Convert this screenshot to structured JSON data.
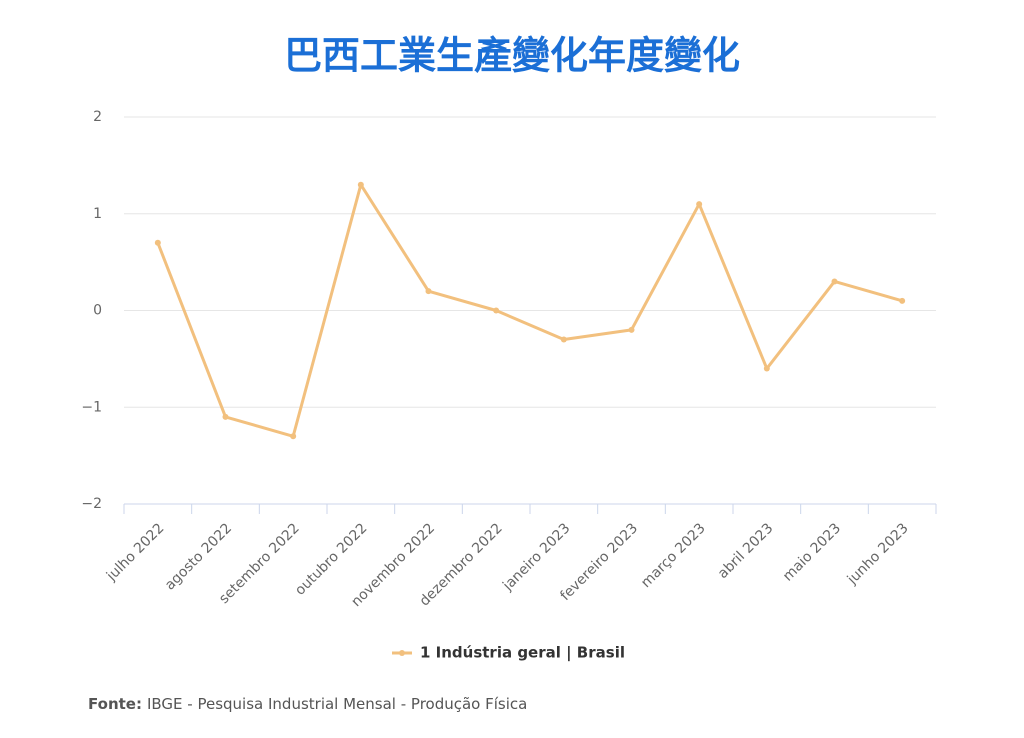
{
  "chart_data": {
    "type": "line",
    "title": "巴西工業生產變化年度變化",
    "categories": [
      "julho 2022",
      "agosto 2022",
      "setembro 2022",
      "outubro 2022",
      "novembro 2022",
      "dezembro 2022",
      "janeiro 2023",
      "fevereiro 2023",
      "março 2023",
      "abril 2023",
      "maio 2023",
      "junho 2023"
    ],
    "series": [
      {
        "name": "1 Indústria geral | Brasil",
        "color": "#f2c07e",
        "values": [
          0.7,
          -1.1,
          -1.3,
          1.3,
          0.2,
          0.0,
          -0.3,
          -0.2,
          1.1,
          -0.6,
          0.3,
          0.1
        ]
      }
    ],
    "ylim": [
      -2,
      2
    ],
    "yticks": [
      {
        "value": -2,
        "label": "−2"
      },
      {
        "value": -1,
        "label": "−1"
      },
      0,
      1,
      2
    ],
    "grid": true,
    "source_label": "Fonte:",
    "source_text": "IBGE - Pesquisa Industrial Mensal - Produção Física"
  }
}
